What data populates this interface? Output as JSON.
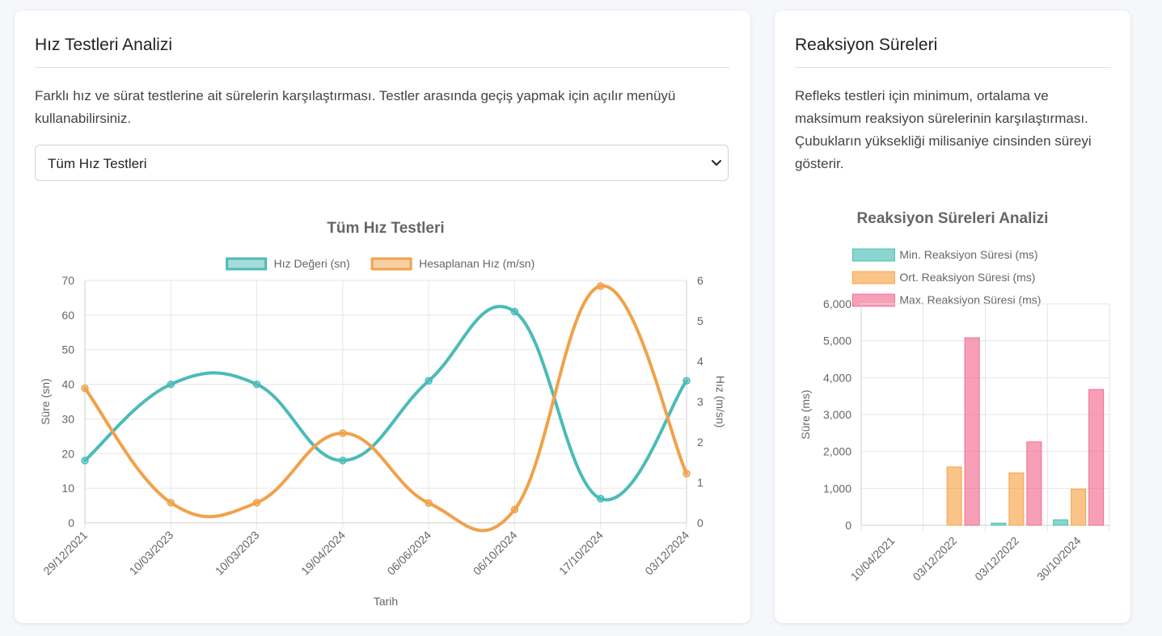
{
  "left_card": {
    "title": "Hız Testleri Analizi",
    "description_line1": "Farklı hız ve sürat testlerine ait sürelerin karşılaştırması. Testler arasında geçiş yapmak için açılır menüyü",
    "description_line2": "kullanabilirsiniz.",
    "select": {
      "value": "Tüm Hız Testleri"
    }
  },
  "right_card": {
    "title": "Reaksiyon Süreleri",
    "description_lines": [
      "Refleks testleri için minimum, ortalama ve",
      "maksimum reaksiyon sürelerinin karşılaştırması.",
      "Çubukların yüksekliği milisaniye cinsinden süreyi",
      "gösterir."
    ]
  },
  "chart_data": [
    {
      "type": "line",
      "title": "Tüm Hız Testleri",
      "xlabel": "Tarih",
      "ylabel": "Süre (sn)",
      "y2label": "Hız (m/sn)",
      "categories": [
        "29/12/2021",
        "10/03/2023",
        "10/03/2023",
        "19/04/2024",
        "06/06/2024",
        "06/10/2024",
        "17/10/2024",
        "03/12/2024"
      ],
      "ylim": [
        0,
        70
      ],
      "y2lim": [
        0,
        6
      ],
      "y_ticks": [
        "0",
        "10",
        "20",
        "30",
        "40",
        "50",
        "60",
        "70"
      ],
      "y2_ticks": [
        "0",
        "1",
        "2",
        "3",
        "4",
        "5",
        "6"
      ],
      "grid": true,
      "legend_position": "top",
      "series": [
        {
          "name": "Hız Değeri (sn)",
          "axis": "left",
          "color": "#4bbbb8",
          "values": [
            18,
            40,
            40,
            18,
            41,
            61,
            7,
            41
          ]
        },
        {
          "name": "Hesaplanan Hız (m/sn)",
          "axis": "right",
          "color": "#f0a24a",
          "values": [
            3.33,
            0.5,
            0.5,
            2.22,
            0.49,
            0.33,
            5.86,
            1.22
          ]
        }
      ]
    },
    {
      "type": "bar",
      "title": "Reaksiyon Süreleri Analizi",
      "ylabel": "Süre (ms)",
      "categories": [
        "10/04/2021",
        "03/12/2022",
        "03/12/2022",
        "30/10/2024"
      ],
      "ylim": [
        0,
        6000
      ],
      "y_ticks": [
        "0",
        "1,000",
        "2,000",
        "3,000",
        "4,000",
        "5,000",
        "6,000"
      ],
      "grid": true,
      "legend_position": "top",
      "series": [
        {
          "name": "Min. Reaksiyon Süresi (ms)",
          "color": "#4bbfb5",
          "values": [
            0,
            0,
            60,
            150
          ]
        },
        {
          "name": "Ort. Reaksiyon Süresi (ms)",
          "color": "#f7a347",
          "values": [
            0,
            1580,
            1420,
            980
          ]
        },
        {
          "name": "Max. Reaksiyon Süresi (ms)",
          "color": "#f26b8f",
          "values": [
            0,
            5080,
            2260,
            3680
          ]
        }
      ]
    }
  ]
}
